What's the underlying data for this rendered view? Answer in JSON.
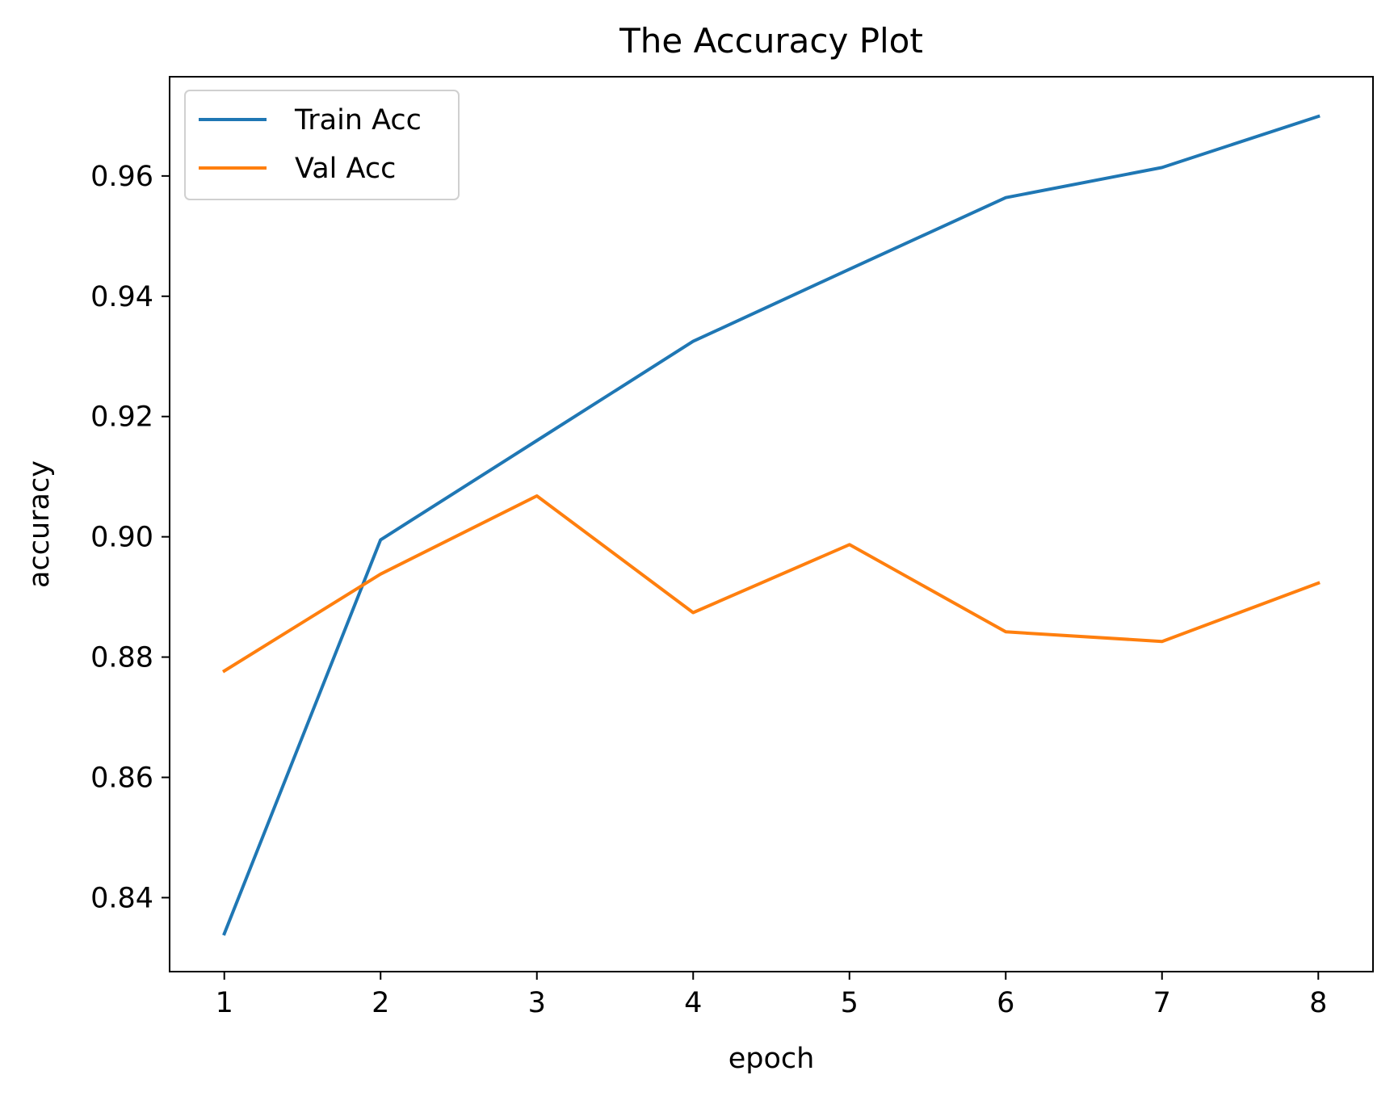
{
  "chart_data": {
    "type": "line",
    "title": "The Accuracy Plot",
    "xlabel": "epoch",
    "ylabel": "accuracy",
    "x": [
      1,
      2,
      3,
      4,
      5,
      6,
      7,
      8
    ],
    "xticks": [
      "1",
      "2",
      "3",
      "4",
      "5",
      "6",
      "7",
      "8"
    ],
    "yticks": [
      "0.84",
      "0.86",
      "0.88",
      "0.90",
      "0.92",
      "0.94",
      "0.96"
    ],
    "ytick_values": [
      0.84,
      0.86,
      0.88,
      0.9,
      0.92,
      0.94,
      0.96
    ],
    "xlim": [
      0.65,
      8.35
    ],
    "ylim": [
      0.8277,
      0.9765
    ],
    "grid": false,
    "legend_position": "upper-left",
    "series": [
      {
        "name": "Train Acc",
        "color": "#1f77b4",
        "values": [
          0.834,
          0.8995,
          0.916,
          0.9325,
          0.9445,
          0.9564,
          0.9614,
          0.9699
        ]
      },
      {
        "name": "Val Acc",
        "color": "#ff7f0e",
        "values": [
          0.8777,
          0.8938,
          0.9068,
          0.8874,
          0.8987,
          0.8842,
          0.8826,
          0.8923
        ]
      }
    ]
  }
}
